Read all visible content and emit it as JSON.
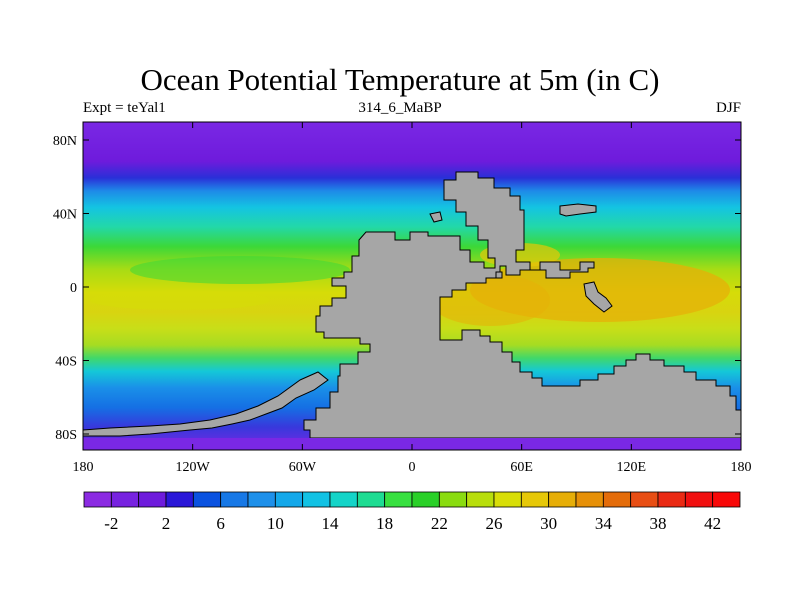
{
  "title": "Ocean Potential Temperature at 5m (in C)",
  "left_string": "Expt = teYal1",
  "center_string": "314_6_MaBP",
  "right_string": "DJF",
  "x_ticks": [
    "180",
    "120W",
    "60W",
    "0",
    "60E",
    "120E",
    "180"
  ],
  "y_ticks": [
    "80N",
    "40N",
    "0",
    "40S",
    "80S"
  ],
  "colorbar": {
    "labels": [
      "-2",
      "2",
      "6",
      "10",
      "14",
      "18",
      "22",
      "26",
      "30",
      "34",
      "38",
      "42"
    ],
    "colors": [
      "#8b2be2",
      "#7722e0",
      "#6e1bdc",
      "#2a17d8",
      "#0a52e0",
      "#1778e6",
      "#1e90ea",
      "#14a8ea",
      "#12c2e4",
      "#14d4c8",
      "#1edc92",
      "#38e040",
      "#2ad028",
      "#8adc10",
      "#b8de0c",
      "#d8de08",
      "#e6c808",
      "#e6ae08",
      "#e69008",
      "#e46c0a",
      "#e84e14",
      "#ea2a14",
      "#f01010",
      "#f80808"
    ]
  },
  "colors": {
    "land": "#a6a6a6",
    "coast": "#000000"
  }
}
